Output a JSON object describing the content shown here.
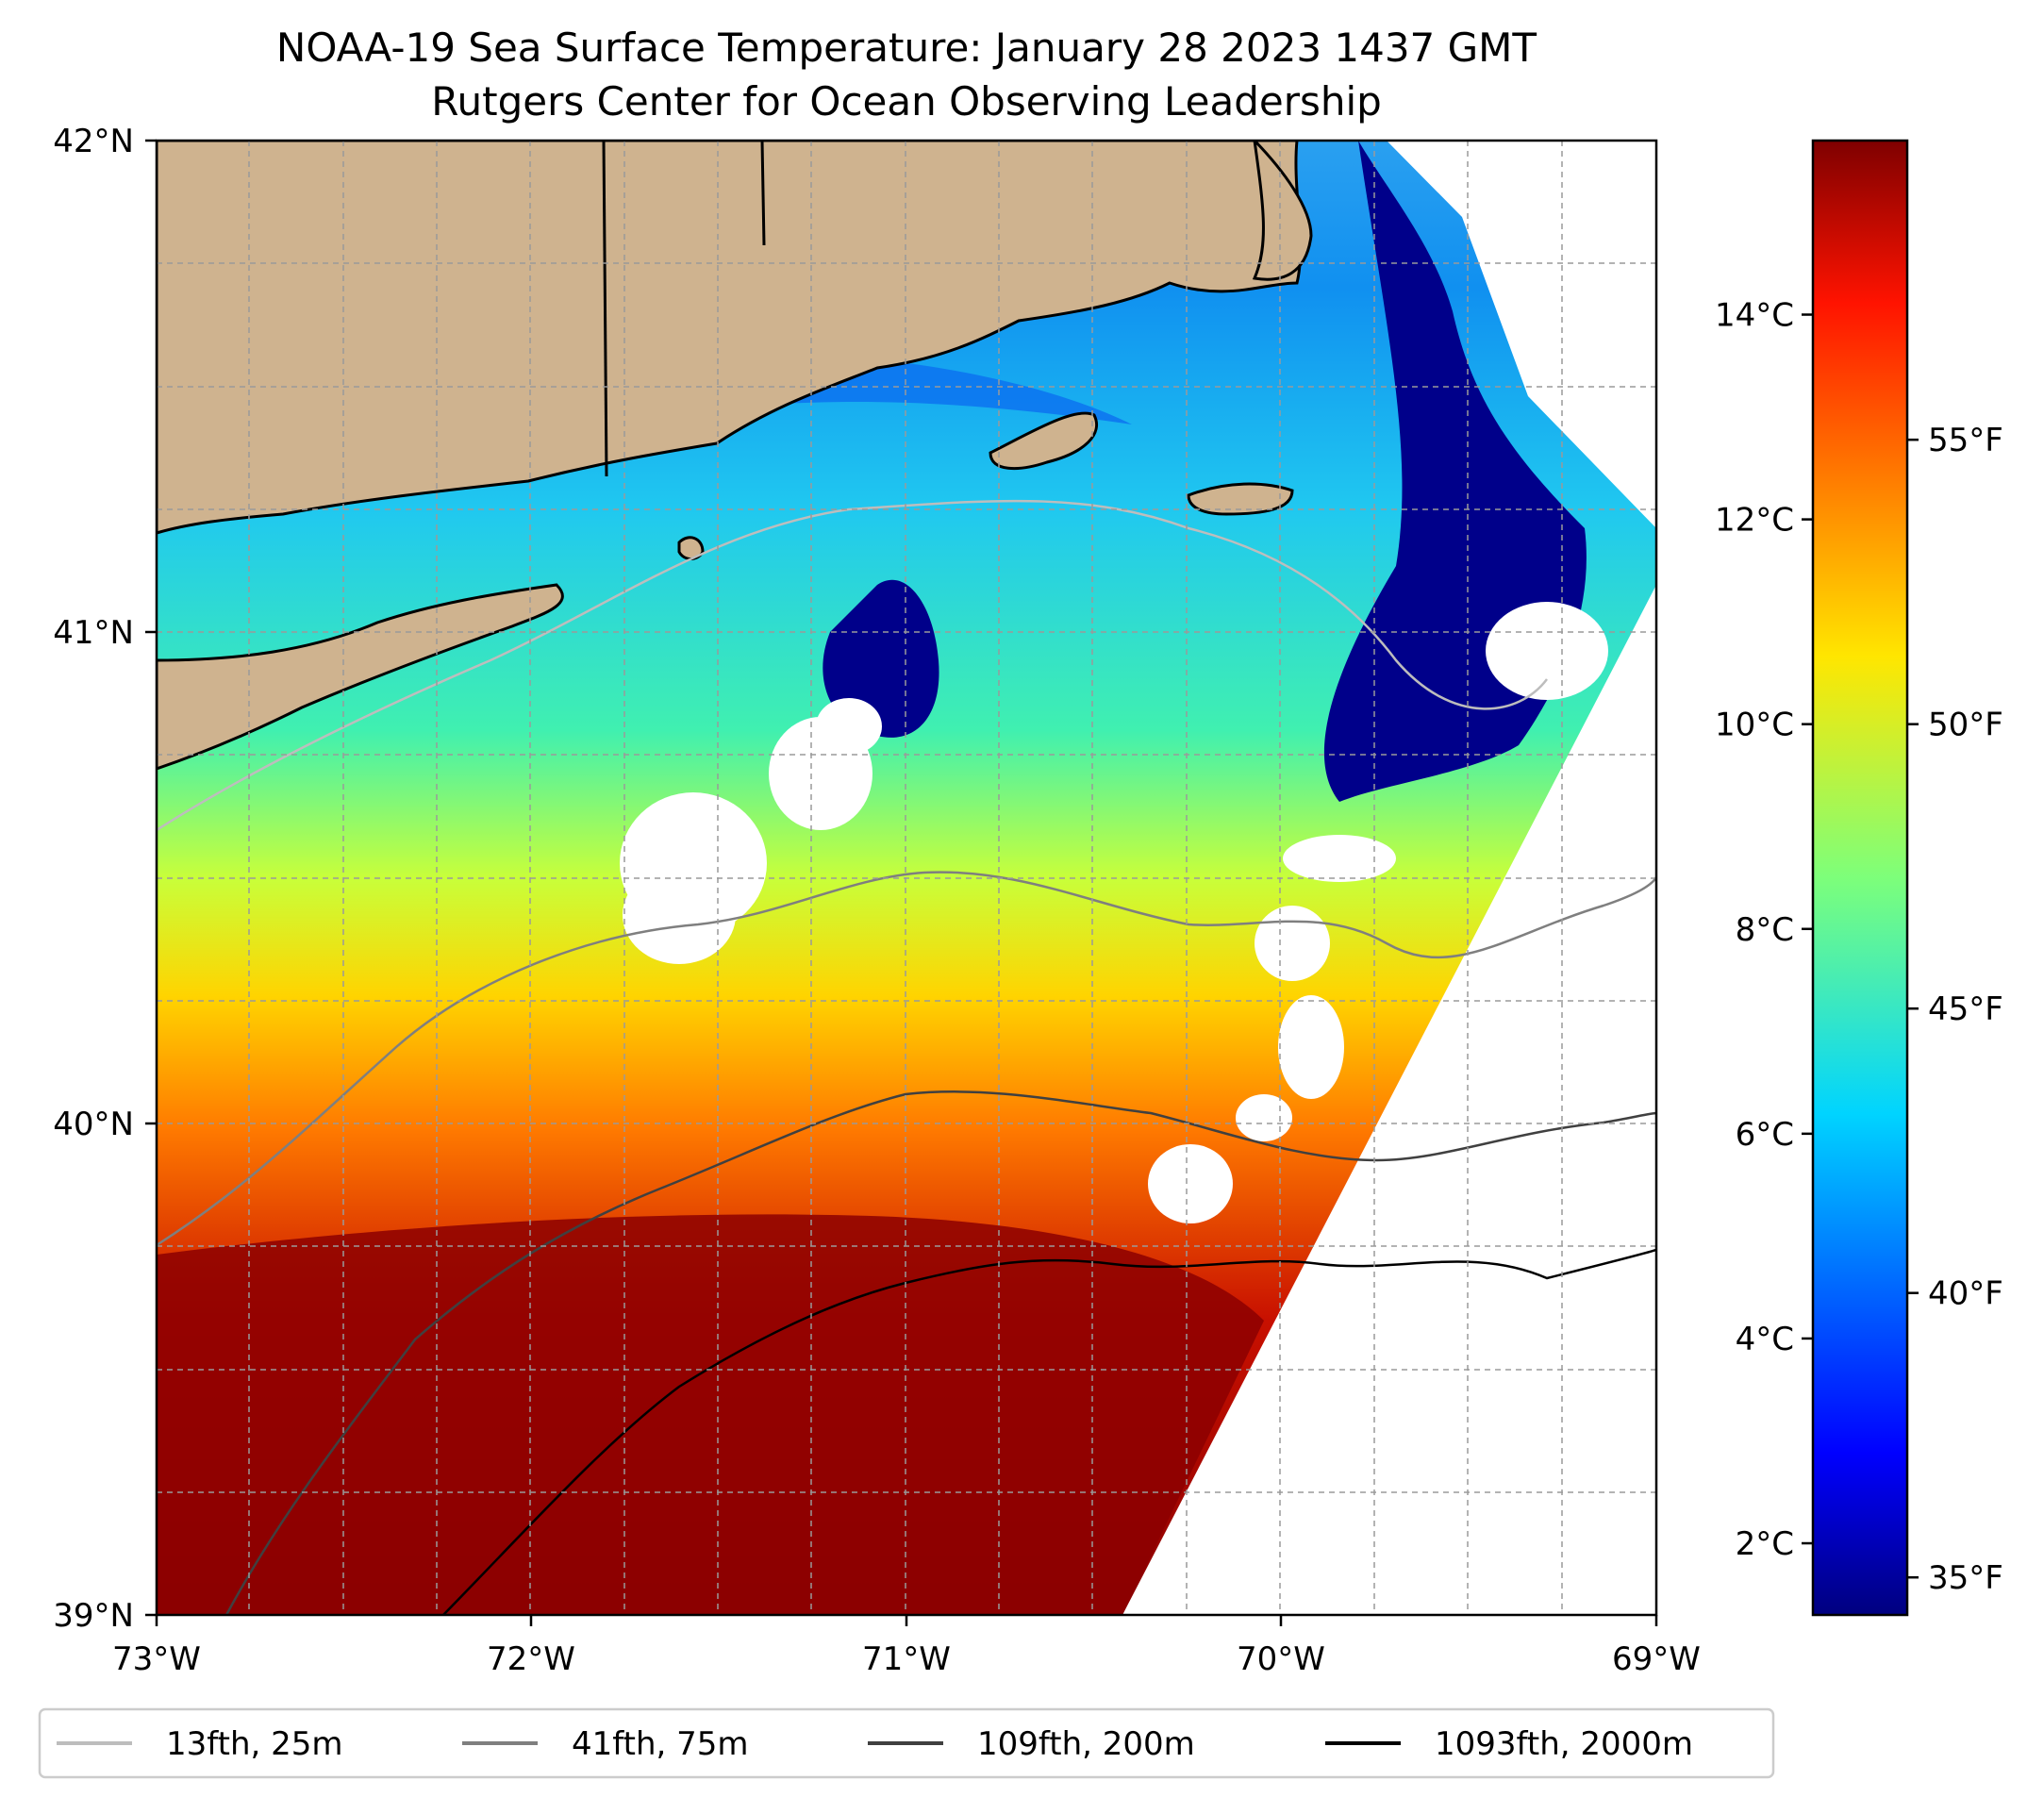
{
  "title": "NOAA-19 Sea Surface Temperature: January 28 2023 1437 GMT",
  "subtitle": "Rutgers Center for Ocean Observing Leadership",
  "map": {
    "lon_range": [
      -73,
      -69
    ],
    "lat_range": [
      39,
      42
    ],
    "lon_ticks": [
      "73°W",
      "72°W",
      "71°W",
      "70°W",
      "69°W"
    ],
    "lat_ticks": [
      "42°N",
      "41°N",
      "40°N",
      "39°N"
    ],
    "gridlines": true,
    "colors": {
      "land": "#cfb38f",
      "coast": "#000000",
      "grid": "#9a9a9a"
    }
  },
  "colorbar": {
    "colormap": "jet",
    "celsius_labels": [
      "14°C",
      "12°C",
      "10°C",
      "8°C",
      "6°C",
      "4°C",
      "2°C"
    ],
    "fahrenheit_labels": [
      "55°F",
      "50°F",
      "45°F",
      "40°F",
      "35°F"
    ],
    "celsius_values": [
      14,
      12,
      10,
      8,
      6,
      4,
      2
    ],
    "fahrenheit_values": [
      55,
      50,
      45,
      40,
      35
    ],
    "range_c": [
      1.3,
      15.7
    ]
  },
  "legend": {
    "placement": "bottom",
    "entries": [
      {
        "label": "13fth, 25m",
        "color": "#bdbdbd"
      },
      {
        "label": "41fth, 75m",
        "color": "#7f7f7f"
      },
      {
        "label": "109fth, 200m",
        "color": "#404040"
      },
      {
        "label": "1093fth, 2000m",
        "color": "#000000"
      }
    ]
  }
}
